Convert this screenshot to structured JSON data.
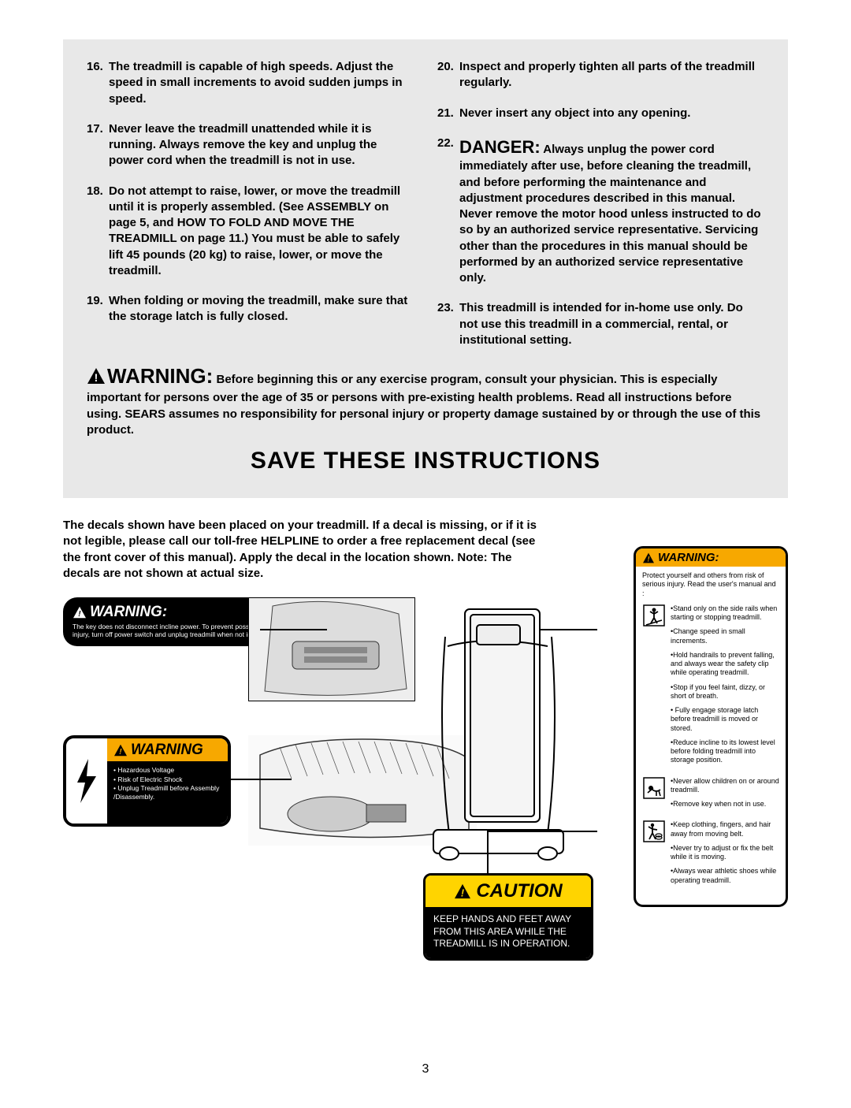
{
  "page_number": "3",
  "greybox": {
    "left_items": [
      {
        "num": "16.",
        "text": "The treadmill is capable of high speeds. Adjust the speed in small increments to avoid sudden jumps in speed."
      },
      {
        "num": "17.",
        "text": "Never leave the treadmill unattended while it is running. Always remove the key and unplug the power cord when the treadmill is not in use."
      },
      {
        "num": "18.",
        "text": "Do not attempt to raise, lower, or move the treadmill until it is properly assembled. (See ASSEMBLY on page 5, and HOW TO FOLD AND MOVE THE TREADMILL on page 11.) You must be able to safely lift 45 pounds (20 kg) to raise, lower, or move the treadmill."
      },
      {
        "num": "19.",
        "text": "When folding or moving the treadmill, make sure that the storage latch is fully closed."
      }
    ],
    "right_items": [
      {
        "num": "20.",
        "text": "Inspect and properly tighten all parts of the treadmill regularly."
      },
      {
        "num": "21.",
        "text": "Never insert any object into any opening."
      },
      {
        "num": "22.",
        "danger": "DANGER:",
        "text": " Always unplug the power cord immediately after use, before cleaning the treadmill, and before performing the maintenance and adjustment procedures described in this manual. Never remove the motor hood unless instructed to do so by an authorized service representative. Servicing other than the procedures in this manual should be performed by an authorized service representative only."
      },
      {
        "num": "23.",
        "text": "This treadmill is intended for in-home use only. Do not use this treadmill in a commercial, rental, or institutional setting."
      }
    ],
    "warning_label": "WARNING:",
    "warning_text": " Before beginning this or any exercise program, consult your physician. This is especially important for persons over the age of 35 or persons with pre-existing health problems. Read all instructions before using. SEARS assumes no responsibility for personal injury or property damage sustained by or through the use of this product.",
    "save_heading": "SAVE THESE INSTRUCTIONS"
  },
  "decal_intro": "The decals shown have been placed on your treadmill. If a decal is missing, or if it is not legible, please call our toll-free HELPLINE to order a free replacement decal (see the front cover of this manual). Apply the decal in the location shown. Note: The decals are not shown at actual size.",
  "black_pill": {
    "header": "WARNING:",
    "body": "The key does not disconnect incline power. To prevent possible injury, turn off power switch and unplug treadmill when not in use."
  },
  "elec_box": {
    "header": "WARNING",
    "lines": [
      "• Hazardous Voltage",
      "• Risk of Electric Shock",
      "• Unplug Treadmill before Assembly /Disassembly."
    ]
  },
  "caution_box": {
    "header": "CAUTION",
    "body": "KEEP HANDS AND FEET AWAY FROM THIS AREA WHILE THE TREADMILL IS IN OPERATION."
  },
  "tall_warn": {
    "header": "WARNING:",
    "intro": "Protect yourself and others from risk of serious injury. Read the user's manual and :",
    "groups": [
      {
        "icon": "stand",
        "bullets": [
          "•Stand only on the side rails when starting or stopping treadmill.",
          "•Change speed in small increments.",
          "•Hold handrails to prevent falling, and always wear the safety clip while operating treadmill.",
          "•Stop if you feel faint, dizzy, or short of breath.",
          "• Fully engage storage latch before treadmill is moved or stored.",
          "•Reduce incline to its lowest level before folding treadmill into storage position."
        ]
      },
      {
        "icon": "child",
        "bullets": [
          "•Never allow children on or around treadmill.",
          "•Remove key when not in use."
        ]
      },
      {
        "icon": "cloth",
        "bullets": [
          "•Keep clothing, fingers, and hair away from moving belt.",
          "•Never try to adjust or fix the belt while it is moving.",
          "•Always wear athletic shoes while operating treadmill."
        ]
      }
    ]
  },
  "colors": {
    "grey": "#e8e8e8",
    "orange": "#f7a800",
    "yellow": "#ffd400",
    "black": "#000000"
  }
}
